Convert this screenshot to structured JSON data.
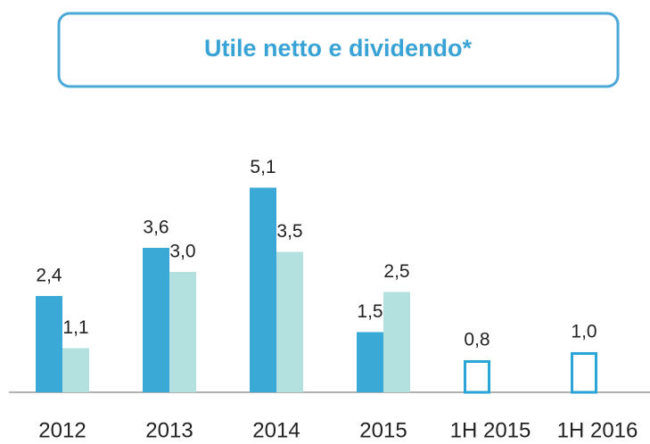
{
  "chart_data": {
    "type": "bar",
    "title": "Utile netto e dividendo*",
    "categories": [
      "2012",
      "2013",
      "2014",
      "2015",
      "1H 2015",
      "1H 2016"
    ],
    "series": [
      {
        "color": "#3aa9d6",
        "style": "filled",
        "values": [
          2.4,
          3.6,
          5.1,
          1.5,
          null,
          null
        ],
        "value_labels": [
          "2,4",
          "3,6",
          "5,1",
          "1,5",
          null,
          null
        ]
      },
      {
        "color": "#b2e1e0",
        "style": "filled",
        "values": [
          1.1,
          3.0,
          3.5,
          2.5,
          null,
          null
        ],
        "value_labels": [
          "1,1",
          "3,0",
          "3,5",
          "2,5",
          null,
          null
        ]
      },
      {
        "color": "#29a5d8",
        "style": "outline",
        "values": [
          null,
          null,
          null,
          null,
          0.8,
          1.0
        ],
        "value_labels": [
          null,
          null,
          null,
          null,
          "0,8",
          "1,0"
        ]
      }
    ]
  }
}
